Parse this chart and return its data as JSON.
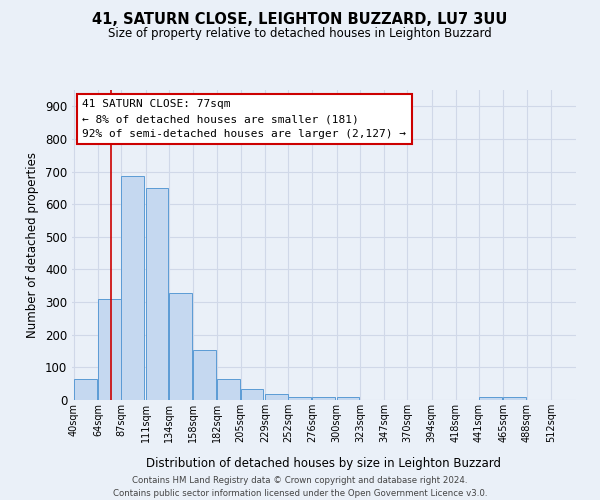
{
  "title": "41, SATURN CLOSE, LEIGHTON BUZZARD, LU7 3UU",
  "subtitle": "Size of property relative to detached houses in Leighton Buzzard",
  "xlabel": "Distribution of detached houses by size in Leighton Buzzard",
  "ylabel": "Number of detached properties",
  "bin_labels": [
    "40sqm",
    "64sqm",
    "87sqm",
    "111sqm",
    "134sqm",
    "158sqm",
    "182sqm",
    "205sqm",
    "229sqm",
    "252sqm",
    "276sqm",
    "300sqm",
    "323sqm",
    "347sqm",
    "370sqm",
    "394sqm",
    "418sqm",
    "441sqm",
    "465sqm",
    "488sqm",
    "512sqm"
  ],
  "bar_values": [
    65,
    310,
    685,
    650,
    328,
    153,
    65,
    33,
    18,
    10,
    10,
    10,
    0,
    0,
    0,
    0,
    0,
    10,
    10,
    0,
    0
  ],
  "bar_color": "#c5d8f0",
  "bar_edge_color": "#5b9bd5",
  "vline_x": 77,
  "vline_color": "#cc0000",
  "annotation_line1": "41 SATURN CLOSE: 77sqm",
  "annotation_line2": "← 8% of detached houses are smaller (181)",
  "annotation_line3": "92% of semi-detached houses are larger (2,127) →",
  "annotation_box_color": "#ffffff",
  "annotation_box_edge": "#cc0000",
  "ylim": [
    0,
    950
  ],
  "yticks": [
    0,
    100,
    200,
    300,
    400,
    500,
    600,
    700,
    800,
    900
  ],
  "grid_color": "#d0d8e8",
  "background_color": "#eaf0f8",
  "footer_line1": "Contains HM Land Registry data © Crown copyright and database right 2024.",
  "footer_line2": "Contains public sector information licensed under the Open Government Licence v3.0.",
  "bin_width": 23
}
